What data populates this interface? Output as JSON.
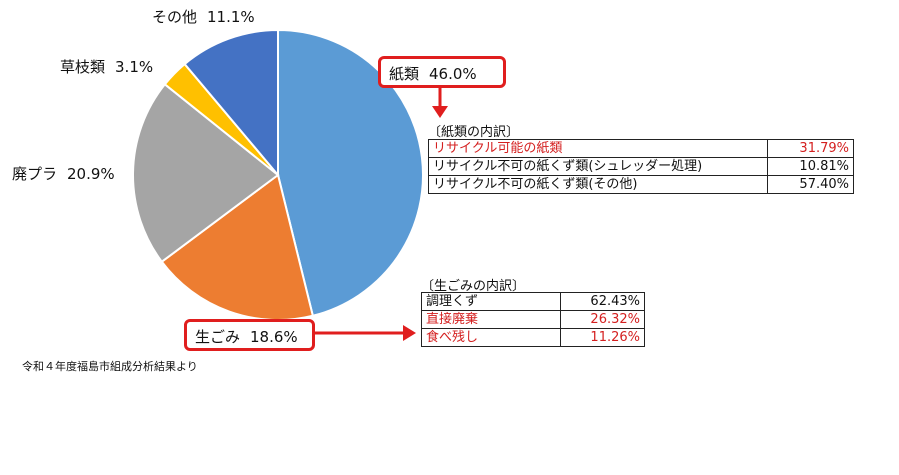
{
  "chart_data": {
    "type": "pie",
    "slices": [
      {
        "name": "紙類",
        "label": "紙類",
        "value": "46.0%",
        "pct": 46.0,
        "color": "#5b9bd5"
      },
      {
        "name": "生ごみ",
        "label": "生ごみ",
        "value": "18.6%",
        "pct": 18.6,
        "color": "#ed7d31"
      },
      {
        "name": "廃プラ",
        "label": "廃プラ",
        "value": "20.9%",
        "pct": 20.9,
        "color": "#a5a5a5"
      },
      {
        "name": "草枝類",
        "label": "草枝類",
        "value": "3.1%",
        "pct": 3.1,
        "color": "#ffc000"
      },
      {
        "name": "その他",
        "label": "その他",
        "value": "11.1%",
        "pct": 11.1,
        "color": "#4472c4"
      }
    ],
    "start_angle_deg": 0,
    "direction": "clockwise"
  },
  "paper_breakdown": {
    "title": "〔紙類の内訳〕",
    "rows": [
      {
        "label": "リサイクル可能の紙類",
        "value": "31.79%",
        "highlight": true
      },
      {
        "label": "リサイクル不可の紙くず類(シュレッダー処理)",
        "value": "10.81%",
        "highlight": false
      },
      {
        "label": "リサイクル不可の紙くず類(その他)",
        "value": "57.40%",
        "highlight": false
      }
    ]
  },
  "food_breakdown": {
    "title": "〔生ごみの内訳〕",
    "rows": [
      {
        "label": "調理くず",
        "value": "62.43%",
        "highlight": false
      },
      {
        "label": "直接廃棄",
        "value": "26.32%",
        "highlight": true
      },
      {
        "label": "食べ残し",
        "value": "11.26%",
        "highlight": true
      }
    ]
  },
  "source": "令和４年度福島市組成分析結果より",
  "colors": {
    "highlight_red": "#e01e1e"
  }
}
